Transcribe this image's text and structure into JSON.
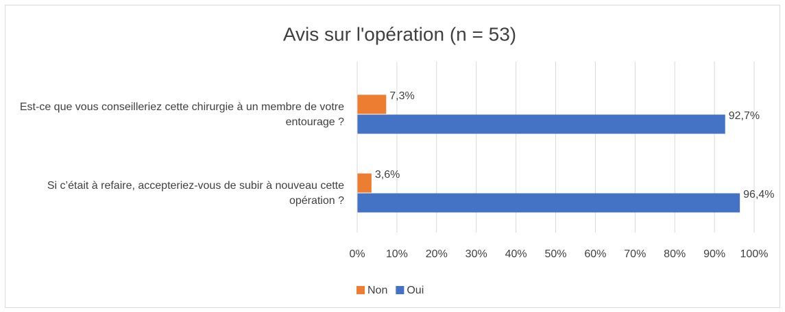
{
  "chart_data": {
    "type": "hbar",
    "title": "Avis sur l'opération (n = 53)",
    "categories": [
      "Est-ce que vous conseilleriez cette chirurgie à un membre de votre entourage ?",
      "Si c’était à refaire, accepteriez-vous de subir à nouveau cette opération ?"
    ],
    "series": [
      {
        "name": "Non",
        "color": "#ed7d31",
        "values": [
          7.3,
          3.6
        ],
        "value_labels": [
          "7,3%",
          "3,6%"
        ]
      },
      {
        "name": "Oui",
        "color": "#4472c4",
        "values": [
          92.7,
          96.4
        ],
        "value_labels": [
          "92,7%",
          "96,4%"
        ]
      }
    ],
    "xlim": [
      0,
      100
    ],
    "xticks": [
      {
        "value": 0,
        "label": "0%"
      },
      {
        "value": 10,
        "label": "10%"
      },
      {
        "value": 20,
        "label": "20%"
      },
      {
        "value": 30,
        "label": "30%"
      },
      {
        "value": 40,
        "label": "40%"
      },
      {
        "value": 50,
        "label": "50%"
      },
      {
        "value": 60,
        "label": "60%"
      },
      {
        "value": 70,
        "label": "70%"
      },
      {
        "value": 80,
        "label": "80%"
      },
      {
        "value": 90,
        "label": "90%"
      },
      {
        "value": 100,
        "label": "100%"
      }
    ],
    "grid": true,
    "legend": "bottom"
  }
}
